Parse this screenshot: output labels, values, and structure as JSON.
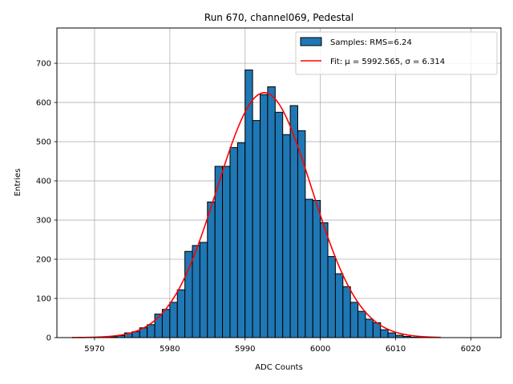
{
  "chart_data": {
    "type": "bar",
    "title": "Run 670, channel069, Pedestal",
    "xlabel": "ADC Counts",
    "ylabel": "Entries",
    "xlim": [
      5965,
      6024
    ],
    "ylim": [
      0,
      790
    ],
    "xticks": [
      5970,
      5980,
      5990,
      6000,
      6010,
      6020
    ],
    "yticks": [
      0,
      100,
      200,
      300,
      400,
      500,
      600,
      700
    ],
    "grid": true,
    "legend_position": "top-right",
    "colors": {
      "bars": "#1f77b4",
      "bar_edge": "#000000",
      "fit": "#ff0000"
    },
    "histogram": {
      "name": "Samples: RMS=6.24",
      "bin_edges_start": 5972,
      "bin_width": 1,
      "values": [
        2,
        5,
        12,
        15,
        25,
        33,
        60,
        72,
        90,
        122,
        220,
        235,
        243,
        346,
        437,
        437,
        485,
        497,
        683,
        554,
        620,
        640,
        575,
        518,
        592,
        528,
        353,
        350,
        293,
        207,
        163,
        130,
        90,
        67,
        47,
        38,
        20,
        12,
        6,
        3,
        1,
        1
      ]
    },
    "fit": {
      "name": "Fit: μ = 5992.565, σ = 6.314",
      "mu": 5992.565,
      "sigma": 6.314,
      "amplitude": 625,
      "x_range": [
        5967,
        6016
      ]
    }
  }
}
